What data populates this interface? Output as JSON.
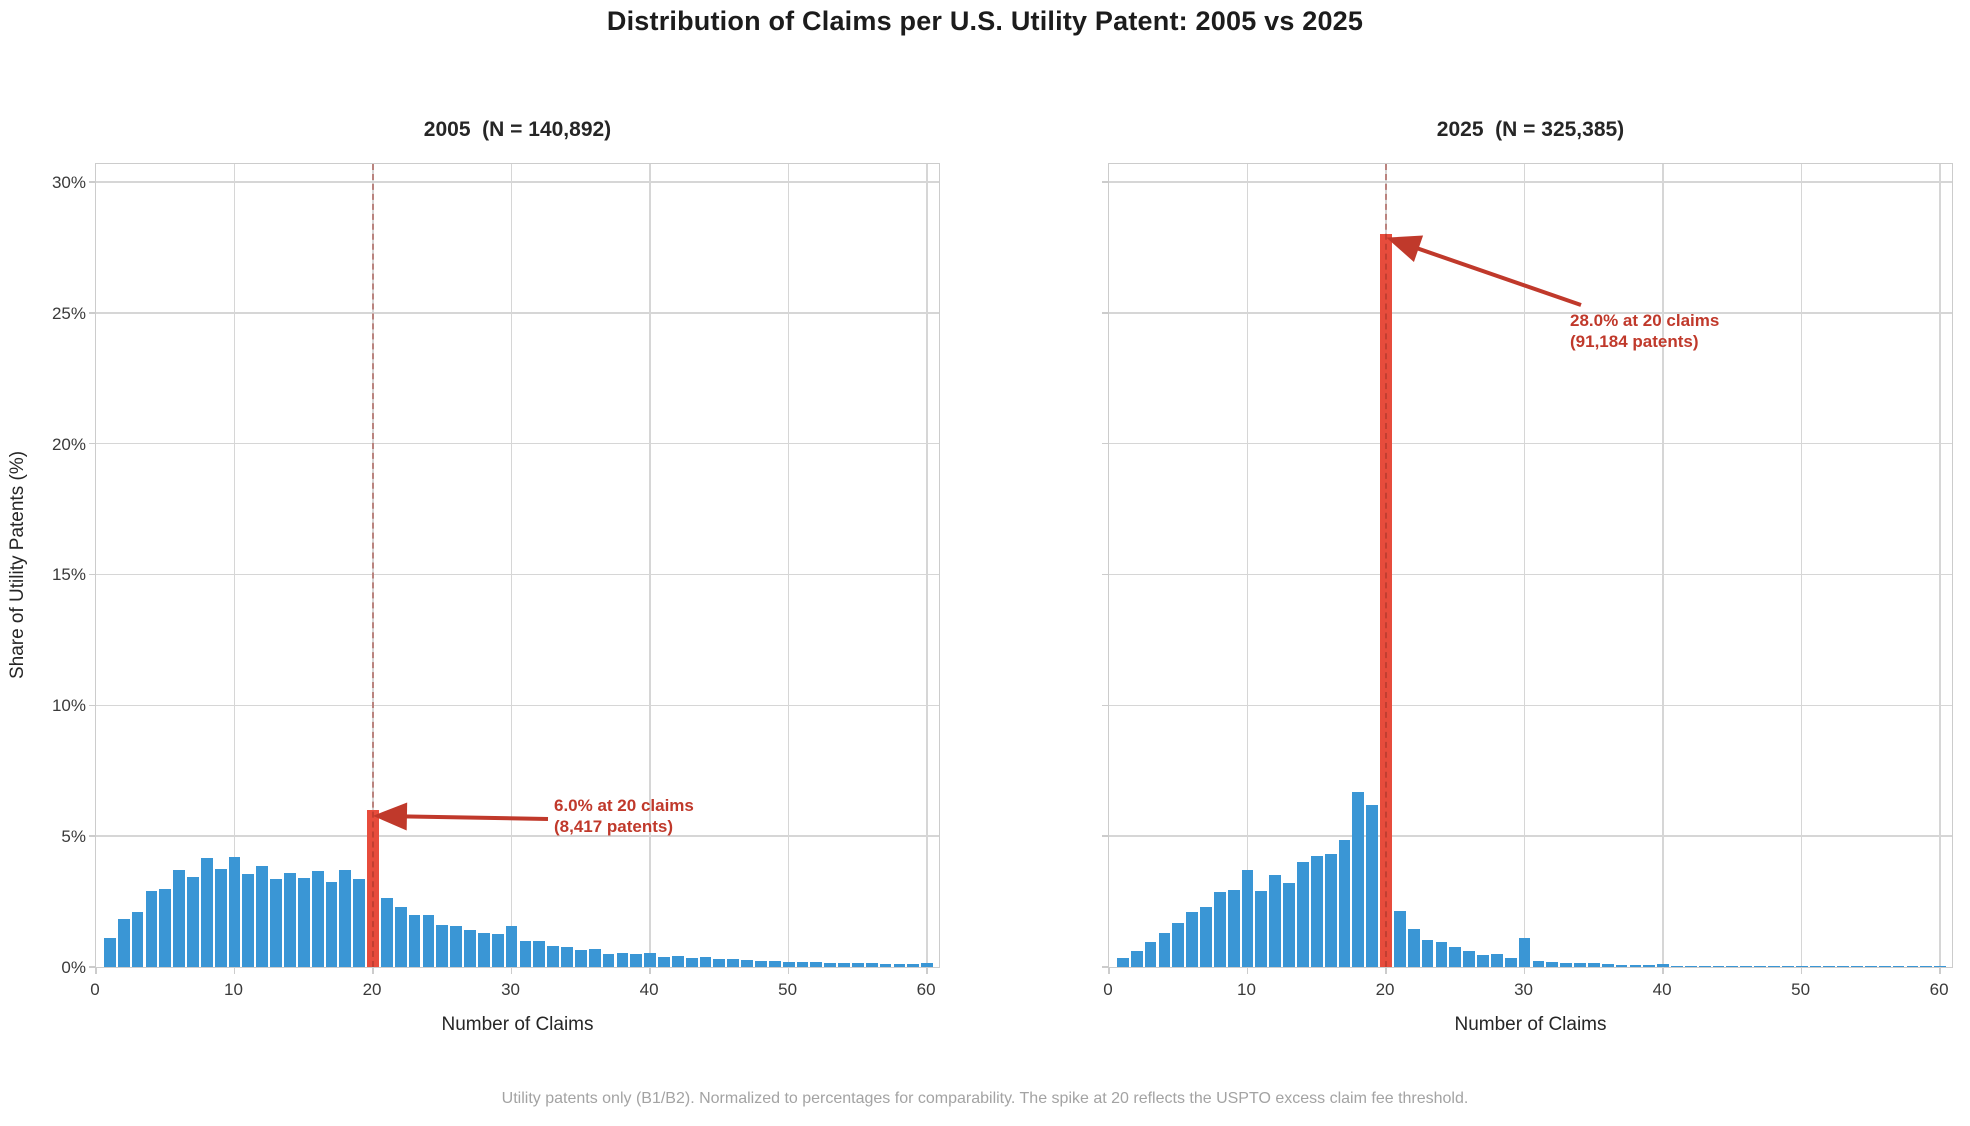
{
  "page": {
    "title": "Distribution of Claims per U.S. Utility Patent: 2005 vs 2025",
    "footnote": "Utility patents only (B1/B2). Normalized to percentages for comparability. The spike at 20 reflects the USPTO excess claim fee threshold."
  },
  "colors": {
    "bar_blue": "#3a96d5",
    "bar_red": "#e74c3c",
    "annotation_red": "#c0392b",
    "dashed_line_red": "rgba(158,48,37,0.5)",
    "gridline": "#d6d6d6",
    "spine": "#cccccc",
    "title_text": "#1c1c1c",
    "tick_text": "#3a3a3a",
    "footnote_text": "#a3a3a3"
  },
  "axes": {
    "ylabel": "Share of Utility Patents (%)",
    "xlabel": "Number of Claims",
    "yticks": [
      0,
      5,
      10,
      15,
      20,
      25,
      30
    ],
    "ytick_labels": [
      "0%",
      "5%",
      "10%",
      "15%",
      "20%",
      "25%",
      "30%"
    ],
    "xticks": [
      0,
      10,
      20,
      30,
      40,
      50,
      60
    ],
    "ymax_pct": 30.76,
    "xmax_claims": 61,
    "grid": true
  },
  "chart_data": [
    {
      "type": "bar",
      "title": "2005  (N = 140,892)",
      "year": "2005",
      "n_total": "140,892",
      "highlight_x": 20,
      "annotation": {
        "line1": "6.0% at 20 claims",
        "line2": "(8,417 patents)",
        "value_pct": 6.0,
        "patents": "8,417"
      },
      "x": [
        1,
        2,
        3,
        4,
        5,
        6,
        7,
        8,
        9,
        10,
        11,
        12,
        13,
        14,
        15,
        16,
        17,
        18,
        19,
        20,
        21,
        22,
        23,
        24,
        25,
        26,
        27,
        28,
        29,
        30,
        31,
        32,
        33,
        34,
        35,
        36,
        37,
        38,
        39,
        40,
        41,
        42,
        43,
        44,
        45,
        46,
        47,
        48,
        49,
        50,
        51,
        52,
        53,
        54,
        55,
        56,
        57,
        58,
        59,
        60
      ],
      "values": [
        1.1,
        1.85,
        2.1,
        2.9,
        3.0,
        3.7,
        3.45,
        4.15,
        3.75,
        4.2,
        3.55,
        3.85,
        3.35,
        3.6,
        3.4,
        3.65,
        3.25,
        3.7,
        3.35,
        6.0,
        2.65,
        2.3,
        2.0,
        2.0,
        1.6,
        1.55,
        1.4,
        1.3,
        1.25,
        1.55,
        1.0,
        1.0,
        0.8,
        0.75,
        0.65,
        0.7,
        0.5,
        0.55,
        0.48,
        0.55,
        0.38,
        0.42,
        0.33,
        0.38,
        0.32,
        0.29,
        0.27,
        0.24,
        0.23,
        0.2,
        0.19,
        0.18,
        0.17,
        0.15,
        0.15,
        0.14,
        0.13,
        0.13,
        0.11,
        0.15
      ]
    },
    {
      "type": "bar",
      "title": "2025  (N = 325,385)",
      "year": "2025",
      "n_total": "325,385",
      "highlight_x": 20,
      "annotation": {
        "line1": "28.0% at 20 claims",
        "line2": "(91,184 patents)",
        "value_pct": 28.0,
        "patents": "91,184"
      },
      "x": [
        1,
        2,
        3,
        4,
        5,
        6,
        7,
        8,
        9,
        10,
        11,
        12,
        13,
        14,
        15,
        16,
        17,
        18,
        19,
        20,
        21,
        22,
        23,
        24,
        25,
        26,
        27,
        28,
        29,
        30,
        31,
        32,
        33,
        34,
        35,
        36,
        37,
        38,
        39,
        40,
        41,
        42,
        43,
        44,
        45,
        46,
        47,
        48,
        49,
        50,
        51,
        52,
        53,
        54,
        55,
        56,
        57,
        58,
        59,
        60
      ],
      "values": [
        0.35,
        0.6,
        0.95,
        1.3,
        1.7,
        2.1,
        2.3,
        2.85,
        2.95,
        3.7,
        2.9,
        3.5,
        3.2,
        4.0,
        4.25,
        4.3,
        4.85,
        6.7,
        6.2,
        28.0,
        2.15,
        1.45,
        1.05,
        0.95,
        0.75,
        0.6,
        0.45,
        0.5,
        0.35,
        1.1,
        0.22,
        0.19,
        0.17,
        0.14,
        0.14,
        0.11,
        0.09,
        0.06,
        0.06,
        0.1,
        0.04,
        0.04,
        0.04,
        0.05,
        0.02,
        0.02,
        0.02,
        0.02,
        0.02,
        0.02,
        0.01,
        0.01,
        0.01,
        0.01,
        0.01,
        0.01,
        0.01,
        0.01,
        0.01,
        0.01
      ]
    }
  ]
}
